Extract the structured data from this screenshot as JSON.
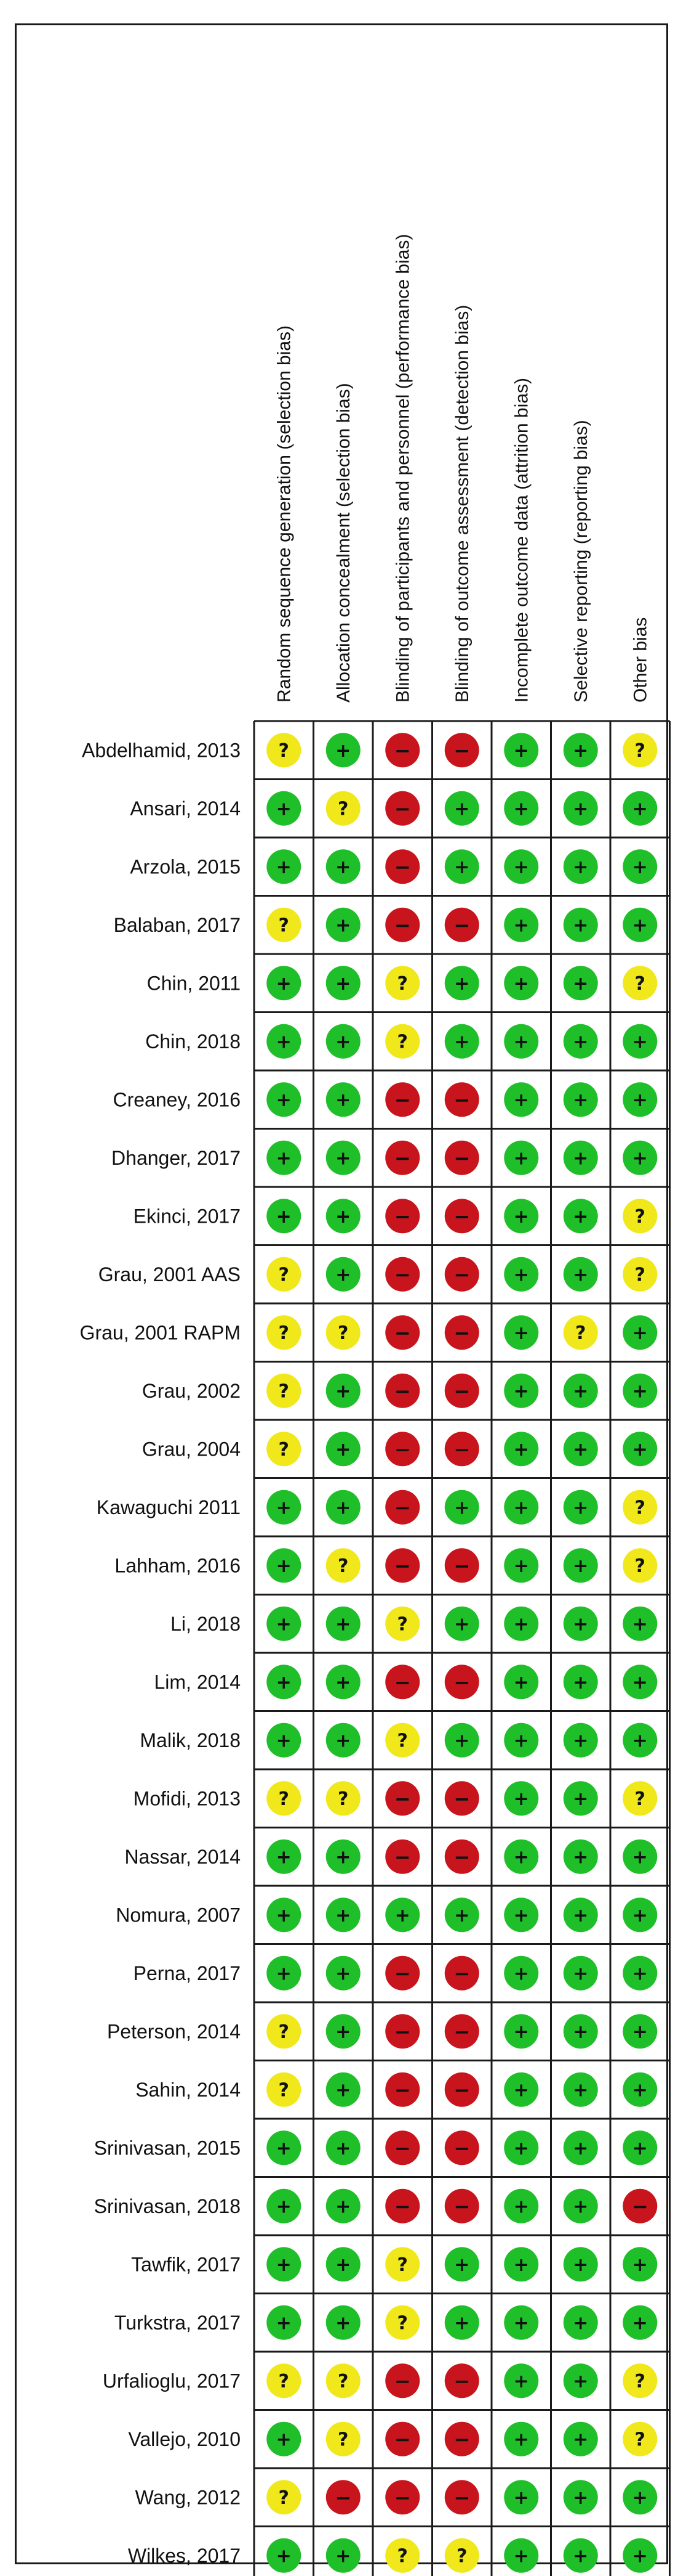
{
  "chart_data": {
    "type": "table",
    "title": "",
    "columns": [
      "Random sequence generation (selection bias)",
      "Allocation concealment (selection bias)",
      "Blinding of participants and personnel (performance bias)",
      "Blinding of outcome assessment (detection bias)",
      "Incomplete outcome data (attrition bias)",
      "Selective reporting (reporting bias)",
      "Other bias"
    ],
    "legend": {
      "low": {
        "symbol": "+",
        "color": "#1fbf2a"
      },
      "unclear": {
        "symbol": "?",
        "color": "#f0e81a"
      },
      "high": {
        "symbol": "−",
        "color": "#c8141c"
      }
    },
    "rows": [
      {
        "study": "Abdelhamid, 2013",
        "ratings": [
          "unclear",
          "low",
          "high",
          "high",
          "low",
          "low",
          "unclear"
        ]
      },
      {
        "study": "Ansari, 2014",
        "ratings": [
          "low",
          "unclear",
          "high",
          "low",
          "low",
          "low",
          "low"
        ]
      },
      {
        "study": "Arzola, 2015",
        "ratings": [
          "low",
          "low",
          "high",
          "low",
          "low",
          "low",
          "low"
        ]
      },
      {
        "study": "Balaban, 2017",
        "ratings": [
          "unclear",
          "low",
          "high",
          "high",
          "low",
          "low",
          "low"
        ]
      },
      {
        "study": "Chin, 2011",
        "ratings": [
          "low",
          "low",
          "unclear",
          "low",
          "low",
          "low",
          "unclear"
        ]
      },
      {
        "study": "Chin, 2018",
        "ratings": [
          "low",
          "low",
          "unclear",
          "low",
          "low",
          "low",
          "low"
        ]
      },
      {
        "study": "Creaney, 2016",
        "ratings": [
          "low",
          "low",
          "high",
          "high",
          "low",
          "low",
          "low"
        ]
      },
      {
        "study": "Dhanger, 2017",
        "ratings": [
          "low",
          "low",
          "high",
          "high",
          "low",
          "low",
          "low"
        ]
      },
      {
        "study": "Ekinci, 2017",
        "ratings": [
          "low",
          "low",
          "high",
          "high",
          "low",
          "low",
          "unclear"
        ]
      },
      {
        "study": "Grau, 2001 AAS",
        "ratings": [
          "unclear",
          "low",
          "high",
          "high",
          "low",
          "low",
          "unclear"
        ]
      },
      {
        "study": "Grau, 2001 RAPM",
        "ratings": [
          "unclear",
          "unclear",
          "high",
          "high",
          "low",
          "unclear",
          "low"
        ]
      },
      {
        "study": "Grau, 2002",
        "ratings": [
          "unclear",
          "low",
          "high",
          "high",
          "low",
          "low",
          "low"
        ]
      },
      {
        "study": "Grau, 2004",
        "ratings": [
          "unclear",
          "low",
          "high",
          "high",
          "low",
          "low",
          "low"
        ]
      },
      {
        "study": "Kawaguchi 2011",
        "ratings": [
          "low",
          "low",
          "high",
          "low",
          "low",
          "low",
          "unclear"
        ]
      },
      {
        "study": "Lahham, 2016",
        "ratings": [
          "low",
          "unclear",
          "high",
          "high",
          "low",
          "low",
          "unclear"
        ]
      },
      {
        "study": "Li, 2018",
        "ratings": [
          "low",
          "low",
          "unclear",
          "low",
          "low",
          "low",
          "low"
        ]
      },
      {
        "study": "Lim, 2014",
        "ratings": [
          "low",
          "low",
          "high",
          "high",
          "low",
          "low",
          "low"
        ]
      },
      {
        "study": "Malik, 2018",
        "ratings": [
          "low",
          "low",
          "unclear",
          "low",
          "low",
          "low",
          "low"
        ]
      },
      {
        "study": "Mofidi, 2013",
        "ratings": [
          "unclear",
          "unclear",
          "high",
          "high",
          "low",
          "low",
          "unclear"
        ]
      },
      {
        "study": "Nassar, 2014",
        "ratings": [
          "low",
          "low",
          "high",
          "high",
          "low",
          "low",
          "low"
        ]
      },
      {
        "study": "Nomura, 2007",
        "ratings": [
          "low",
          "low",
          "low",
          "low",
          "low",
          "low",
          "low"
        ]
      },
      {
        "study": "Perna, 2017",
        "ratings": [
          "low",
          "low",
          "high",
          "high",
          "low",
          "low",
          "low"
        ]
      },
      {
        "study": "Peterson, 2014",
        "ratings": [
          "unclear",
          "low",
          "high",
          "high",
          "low",
          "low",
          "low"
        ]
      },
      {
        "study": "Sahin, 2014",
        "ratings": [
          "unclear",
          "low",
          "high",
          "high",
          "low",
          "low",
          "low"
        ]
      },
      {
        "study": "Srinivasan, 2015",
        "ratings": [
          "low",
          "low",
          "high",
          "high",
          "low",
          "low",
          "low"
        ]
      },
      {
        "study": "Srinivasan, 2018",
        "ratings": [
          "low",
          "low",
          "high",
          "high",
          "low",
          "low",
          "high"
        ]
      },
      {
        "study": "Tawfik, 2017",
        "ratings": [
          "low",
          "low",
          "unclear",
          "low",
          "low",
          "low",
          "low"
        ]
      },
      {
        "study": "Turkstra, 2017",
        "ratings": [
          "low",
          "low",
          "unclear",
          "low",
          "low",
          "low",
          "low"
        ]
      },
      {
        "study": "Urfalioglu, 2017",
        "ratings": [
          "unclear",
          "unclear",
          "high",
          "high",
          "low",
          "low",
          "unclear"
        ]
      },
      {
        "study": "Vallejo, 2010",
        "ratings": [
          "low",
          "unclear",
          "high",
          "high",
          "low",
          "low",
          "unclear"
        ]
      },
      {
        "study": "Wang, 2012",
        "ratings": [
          "unclear",
          "high",
          "high",
          "high",
          "low",
          "low",
          "low"
        ]
      },
      {
        "study": "Wilkes, 2017",
        "ratings": [
          "low",
          "low",
          "unclear",
          "unclear",
          "low",
          "low",
          "low"
        ]
      }
    ]
  }
}
